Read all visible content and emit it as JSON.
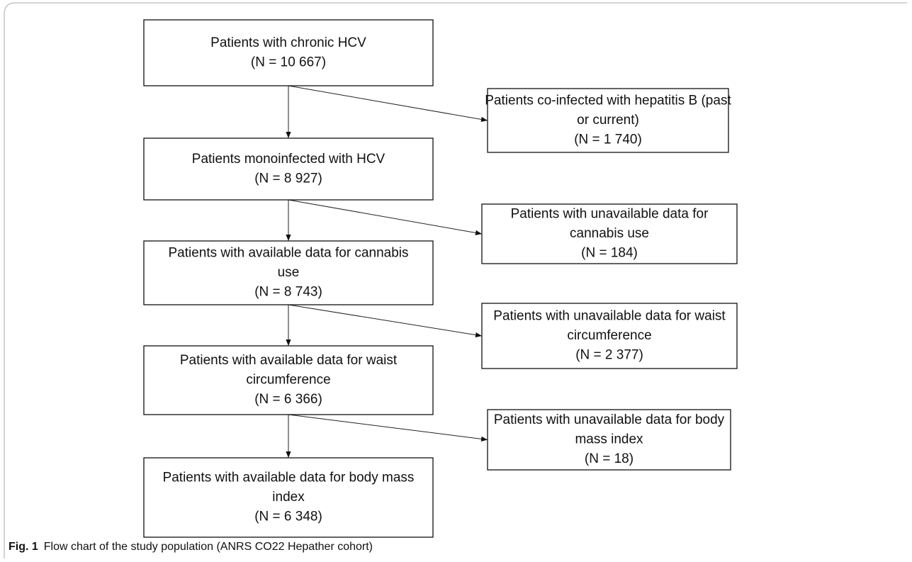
{
  "nodes": [
    {
      "lines": [
        "Patients with chronic HCV",
        "(N = 10 667)"
      ]
    },
    {
      "lines": [
        "Patients co-infected with hepatitis B (past",
        "or current)",
        "(N = 1 740)"
      ]
    },
    {
      "lines": [
        "Patients monoinfected with HCV",
        "(N = 8 927)"
      ]
    },
    {
      "lines": [
        "Patients with unavailable data for",
        "cannabis use",
        "(N = 184)"
      ]
    },
    {
      "lines": [
        "Patients with available data for cannabis",
        "use",
        "(N = 8 743)"
      ]
    },
    {
      "lines": [
        "Patients with unavailable data for waist",
        "circumference",
        "(N = 2 377)"
      ]
    },
    {
      "lines": [
        "Patients with available data for waist",
        "circumference",
        "(N = 6 366)"
      ]
    },
    {
      "lines": [
        "Patients with unavailable data for body",
        "mass index",
        "(N = 18)"
      ]
    },
    {
      "lines": [
        "Patients with available data for body mass",
        "index",
        "(N = 6 348)"
      ]
    }
  ],
  "caption": {
    "label": "Fig. 1",
    "text": "Flow chart of the study population (ANRS CO22 Hepather cohort)"
  }
}
